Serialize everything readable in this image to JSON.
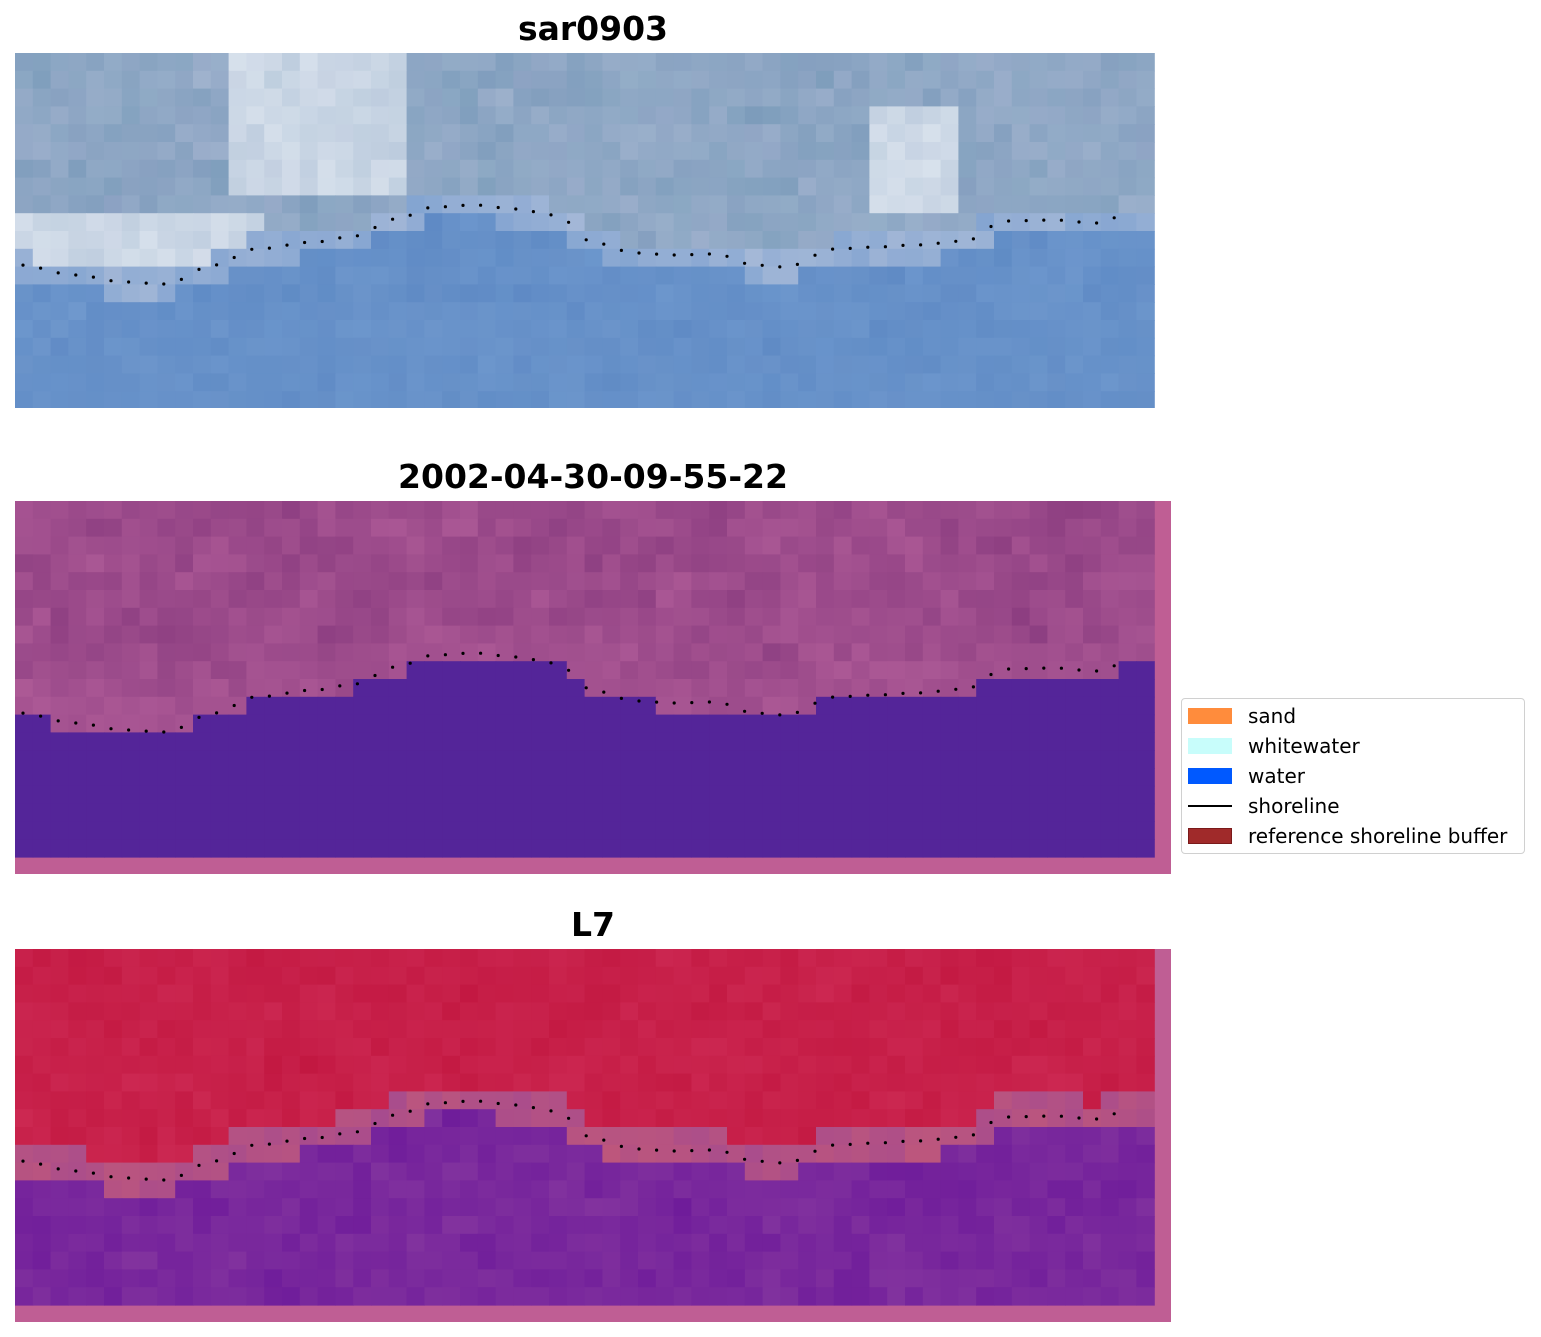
{
  "panels": [
    {
      "title": "sar0903"
    },
    {
      "title": "2002-04-30-09-55-22"
    },
    {
      "title": "L7"
    }
  ],
  "legend": {
    "items": [
      {
        "label": "sand",
        "color": "#ff8c3c",
        "kind": "patch"
      },
      {
        "label": "whitewater",
        "color": "#c8fdfb",
        "kind": "patch"
      },
      {
        "label": "water",
        "color": "#0059ff",
        "kind": "patch"
      },
      {
        "label": "shoreline",
        "color": "#000000",
        "kind": "line"
      },
      {
        "label": "reference shoreline buffer",
        "color": "#a02a2a",
        "kind": "patch"
      }
    ]
  },
  "colors": {
    "rgb_sky": "#8fa5c8",
    "rgb_water": "#6b93c9",
    "classified_water": "#542599",
    "classified_land": "#8b3d80",
    "border_pink": "#bf5e94",
    "mndwi_land": "#c41a44",
    "mndwi_water": "#74209a"
  }
}
